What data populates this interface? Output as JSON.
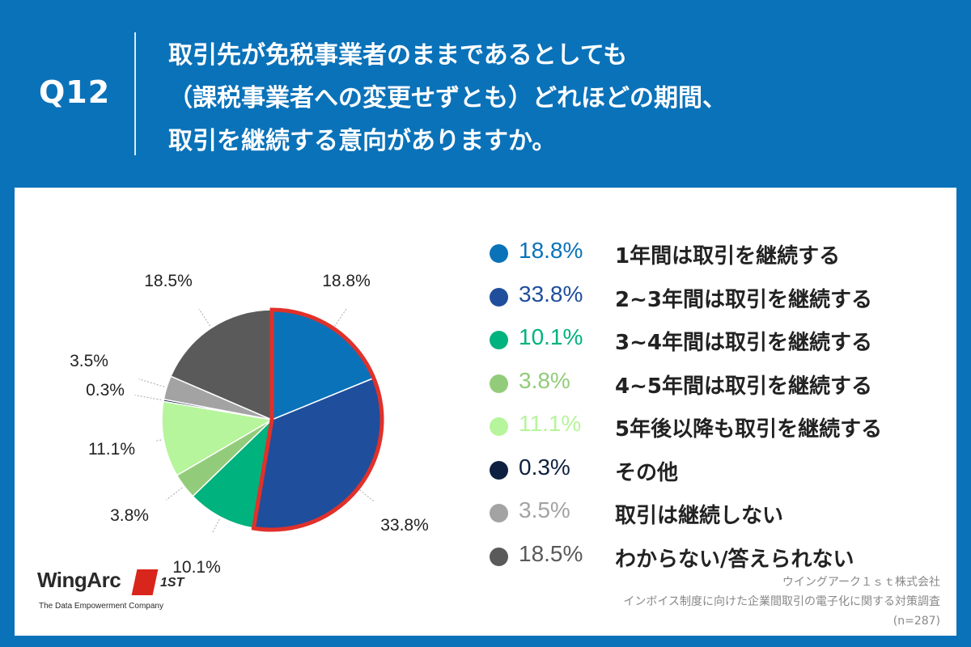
{
  "header": {
    "question_label": "Q12",
    "question_lines": [
      "取引先が免税事業者のままであるとしても",
      "（課税事業者への変更せずとも）どれほどの期間、",
      "取引を継続する意向がありますか。"
    ]
  },
  "chart_data": {
    "type": "pie",
    "title": "取引先が免税事業者のままであるとしても（課税事業者への変更せずとも）どれほどの期間、取引を継続する意向がありますか。",
    "sample_size": "(n=287)",
    "slices": [
      {
        "label": "1年間は取引を継続する",
        "value": 18.8,
        "value_text": "18.8%",
        "color": "#0a72b9"
      },
      {
        "label": "2~3年間は取引を継続する",
        "value": 33.8,
        "value_text": "33.8%",
        "color": "#1f4e9c"
      },
      {
        "label": "3~4年間は取引を継続する",
        "value": 10.1,
        "value_text": "10.1%",
        "color": "#00b27d"
      },
      {
        "label": "4~5年間は取引を継続する",
        "value": 3.8,
        "value_text": "3.8%",
        "color": "#92cc7a"
      },
      {
        "label": "5年後以降も取引を継続する",
        "value": 11.1,
        "value_text": "11.1%",
        "color": "#b6f59b"
      },
      {
        "label": "その他",
        "value": 0.3,
        "value_text": "0.3%",
        "color": "#0d2040"
      },
      {
        "label": "取引は継続しない",
        "value": 3.5,
        "value_text": "3.5%",
        "color": "#a3a3a3"
      },
      {
        "label": "わからない/答えられない",
        "value": 18.5,
        "value_text": "18.5%",
        "color": "#5a5a5a"
      }
    ],
    "highlight": {
      "slices": [
        "1年間は取引を継続する",
        "2~3年間は取引を継続する"
      ],
      "color": "#e0312a"
    }
  },
  "logo": {
    "word": "WingArc",
    "mark_text": "1ST",
    "tagline": "The Data Empowerment Company"
  },
  "source": {
    "company": "ウイングアーク１ｓｔ株式会社",
    "survey": "インボイス制度に向けた企業間取引の電子化に関する対策調査",
    "n": "(n=287)"
  }
}
